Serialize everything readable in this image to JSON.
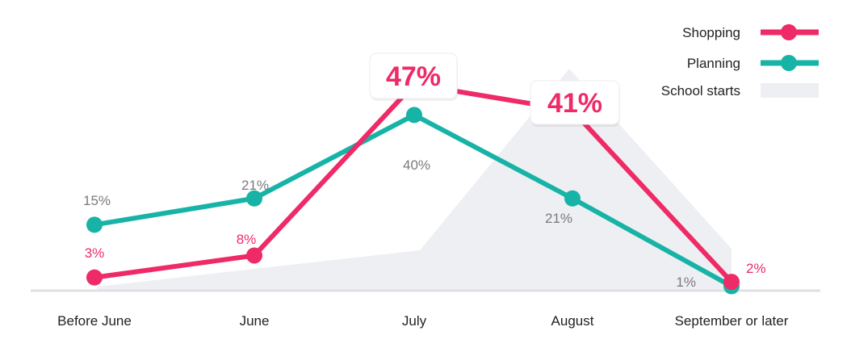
{
  "chart_data": {
    "type": "line",
    "categories": [
      "Before June",
      "June",
      "July",
      "August",
      "September or later"
    ],
    "series": [
      {
        "name": "Shopping",
        "color": "#EE2A67",
        "values": [
          3,
          8,
          47,
          41,
          2
        ],
        "labels": [
          "3%",
          "8%",
          "",
          "",
          "2%"
        ]
      },
      {
        "name": "Planning",
        "color": "#17B3A6",
        "values": [
          15,
          21,
          40,
          21,
          1
        ],
        "labels": [
          "15%",
          "21%",
          "40%",
          "21%",
          "1%"
        ]
      }
    ],
    "callouts": [
      {
        "text": "47%",
        "series": "Shopping",
        "category": "July"
      },
      {
        "text": "41%",
        "series": "Shopping",
        "category": "August"
      }
    ],
    "background_area": {
      "name": "School starts",
      "color": "#EEEFF3"
    },
    "ylim": [
      0,
      50
    ],
    "legend_position": "top-right",
    "grid": false
  }
}
